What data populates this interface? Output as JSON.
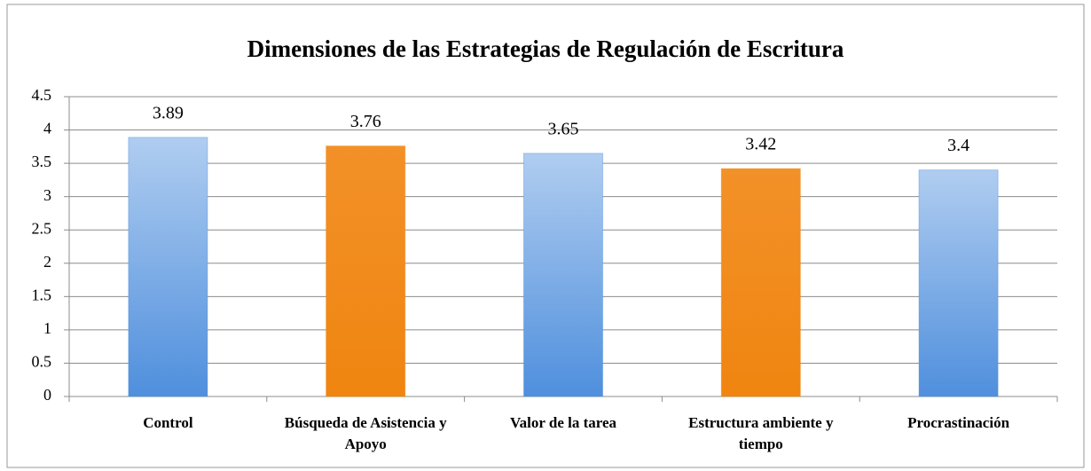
{
  "chart_data": {
    "type": "bar",
    "title": "Dimensiones de las Estrategias de Regulación de Escritura",
    "categories": [
      "Control",
      "Búsqueda de Asistencia y Apoyo",
      "Valor de la tarea",
      "Estructura ambiente y tiempo",
      "Procrastinación"
    ],
    "values": [
      3.89,
      3.76,
      3.65,
      3.42,
      3.4
    ],
    "colors": [
      "#4f8fdd",
      "#f08510",
      "#4f8fdd",
      "#f08510",
      "#4f8fdd"
    ],
    "ylim": [
      0,
      4.5
    ],
    "yticks": [
      0,
      0.5,
      1,
      1.5,
      2,
      2.5,
      3,
      3.5,
      4,
      4.5
    ],
    "grid": true
  }
}
